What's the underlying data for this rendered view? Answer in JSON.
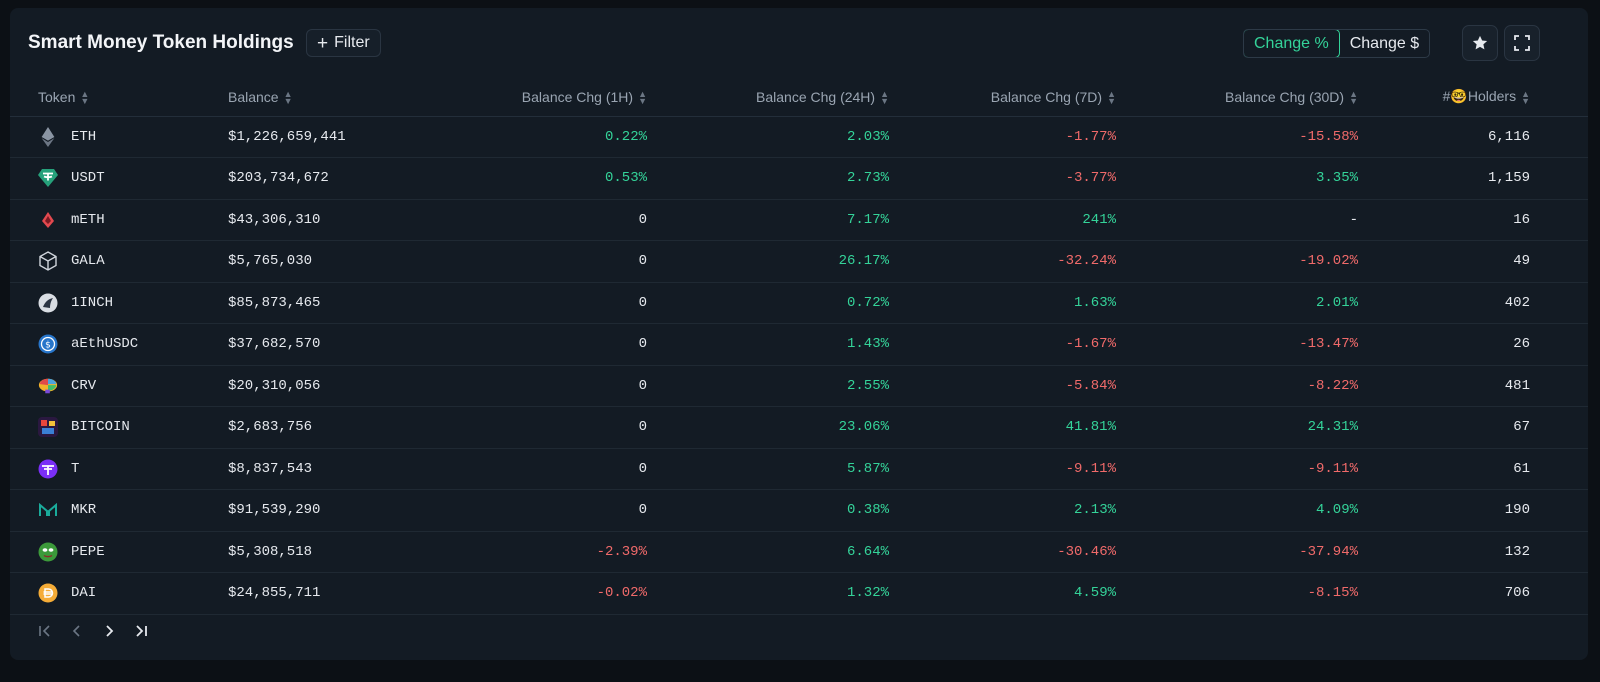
{
  "header": {
    "title": "Smart Money Token Holdings",
    "filter_label": "Filter",
    "toggle": {
      "active": "Change %",
      "inactive": "Change $"
    }
  },
  "columns": [
    "Token",
    "Balance",
    "Balance Chg (1H)",
    "Balance Chg (24H)",
    "Balance Chg (7D)",
    "Balance Chg (30D)",
    "#🤓Holders"
  ],
  "rows": [
    {
      "icon": "eth-icon",
      "token": "ETH",
      "balance": "$1,226,659,441",
      "chg1h": "0.22%",
      "chg24h": "2.03%",
      "chg7d": "-1.77%",
      "chg30d": "-15.58%",
      "holders": "6,116"
    },
    {
      "icon": "usdt-icon",
      "token": "USDT",
      "balance": "$203,734,672",
      "chg1h": "0.53%",
      "chg24h": "2.73%",
      "chg7d": "-3.77%",
      "chg30d": "3.35%",
      "holders": "1,159"
    },
    {
      "icon": "meth-icon",
      "token": "mETH",
      "balance": "$43,306,310",
      "chg1h": "0",
      "chg24h": "7.17%",
      "chg7d": "241%",
      "chg30d": "-",
      "holders": "16"
    },
    {
      "icon": "gala-icon",
      "token": "GALA",
      "balance": "$5,765,030",
      "chg1h": "0",
      "chg24h": "26.17%",
      "chg7d": "-32.24%",
      "chg30d": "-19.02%",
      "holders": "49"
    },
    {
      "icon": "1inch-icon",
      "token": "1INCH",
      "balance": "$85,873,465",
      "chg1h": "0",
      "chg24h": "0.72%",
      "chg7d": "1.63%",
      "chg30d": "2.01%",
      "holders": "402"
    },
    {
      "icon": "aethusdc-icon",
      "token": "aEthUSDC",
      "balance": "$37,682,570",
      "chg1h": "0",
      "chg24h": "1.43%",
      "chg7d": "-1.67%",
      "chg30d": "-13.47%",
      "holders": "26"
    },
    {
      "icon": "crv-icon",
      "token": "CRV",
      "balance": "$20,310,056",
      "chg1h": "0",
      "chg24h": "2.55%",
      "chg7d": "-5.84%",
      "chg30d": "-8.22%",
      "holders": "481"
    },
    {
      "icon": "bitcoin-icon",
      "token": "BITCOIN",
      "balance": "$2,683,756",
      "chg1h": "0",
      "chg24h": "23.06%",
      "chg7d": "41.81%",
      "chg30d": "24.31%",
      "holders": "67"
    },
    {
      "icon": "t-icon",
      "token": "T",
      "balance": "$8,837,543",
      "chg1h": "0",
      "chg24h": "5.87%",
      "chg7d": "-9.11%",
      "chg30d": "-9.11%",
      "holders": "61"
    },
    {
      "icon": "mkr-icon",
      "token": "MKR",
      "balance": "$91,539,290",
      "chg1h": "0",
      "chg24h": "0.38%",
      "chg7d": "2.13%",
      "chg30d": "4.09%",
      "holders": "190"
    },
    {
      "icon": "pepe-icon",
      "token": "PEPE",
      "balance": "$5,308,518",
      "chg1h": "-2.39%",
      "chg24h": "6.64%",
      "chg7d": "-30.46%",
      "chg30d": "-37.94%",
      "holders": "132"
    },
    {
      "icon": "dai-icon",
      "token": "DAI",
      "balance": "$24,855,711",
      "chg1h": "-0.02%",
      "chg24h": "1.32%",
      "chg7d": "4.59%",
      "chg30d": "-8.15%",
      "holders": "706"
    }
  ],
  "colors": {
    "positive": "#34d399",
    "negative": "#f06a6a",
    "panel": "#131b24",
    "background": "#0c1015"
  }
}
